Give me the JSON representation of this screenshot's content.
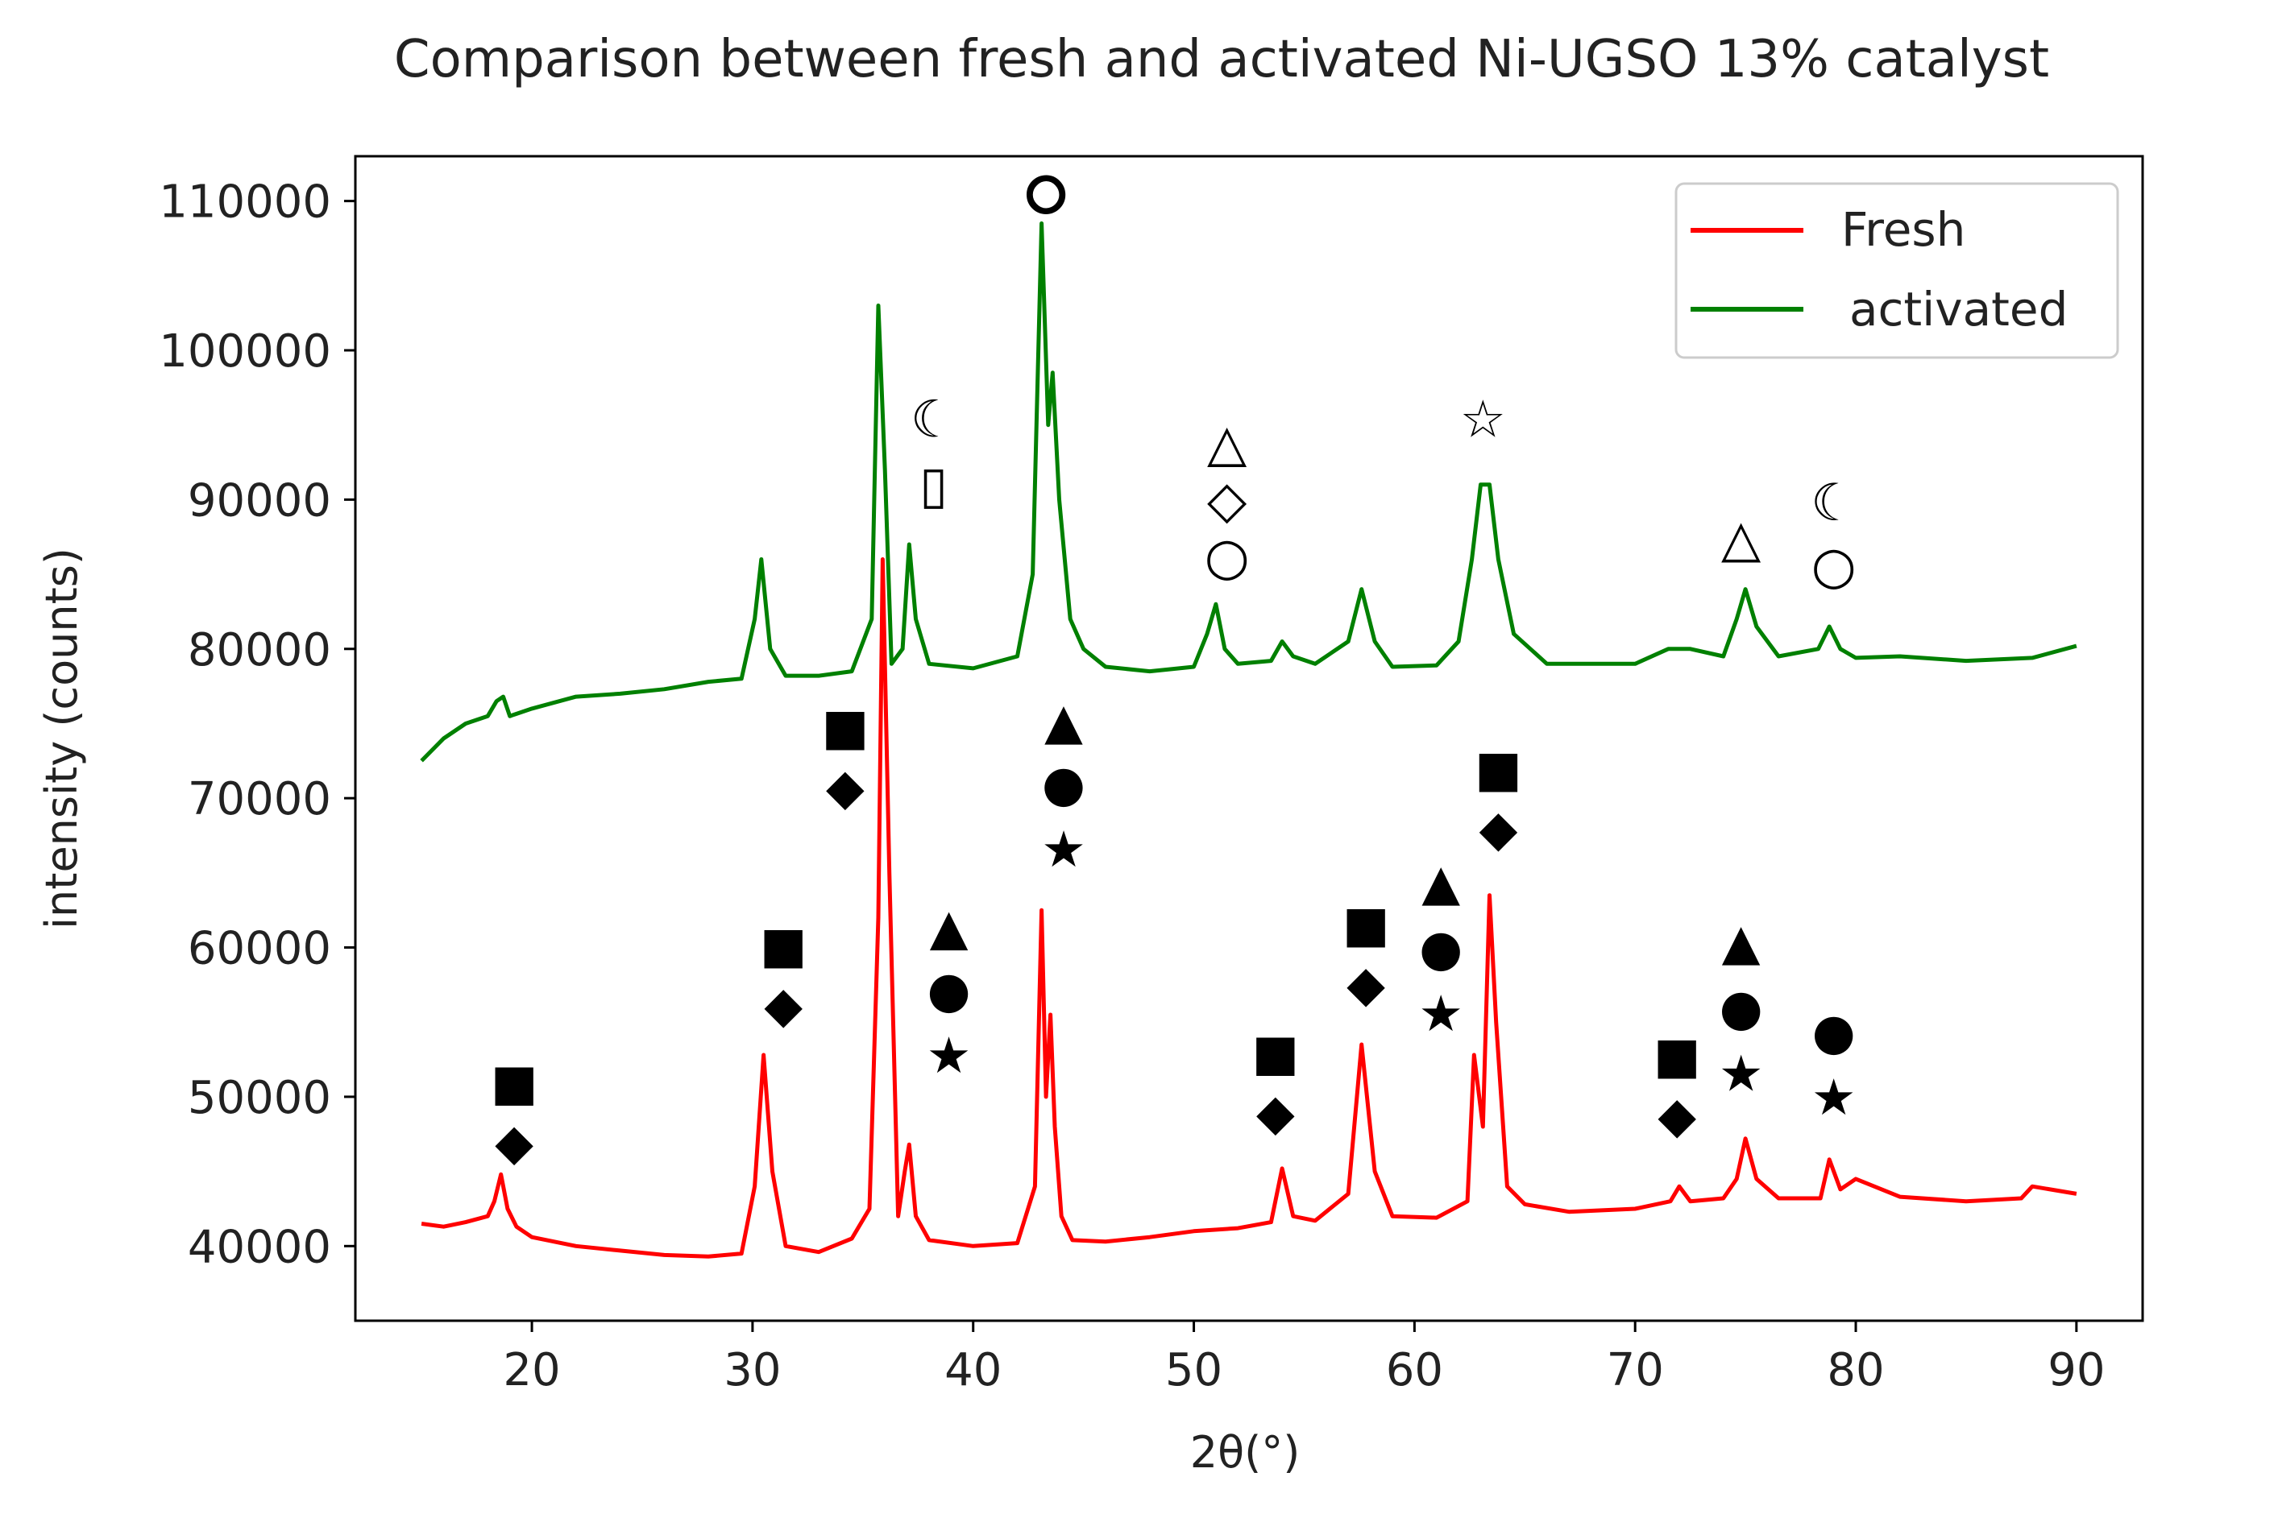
{
  "chart_data": {
    "type": "line",
    "title": "Comparison between fresh and activated Ni-UGSO 13% catalyst",
    "xlabel": "2θ(°)",
    "ylabel": "intensity (counts)",
    "xlim": [
      12,
      93
    ],
    "ylim": [
      35000,
      113000
    ],
    "xticks": [
      20,
      30,
      40,
      50,
      60,
      70,
      80,
      90
    ],
    "xtick_labels": [
      "20",
      "30",
      "40",
      "50",
      "60",
      "70",
      "80",
      "90"
    ],
    "yticks": [
      40000,
      50000,
      60000,
      70000,
      80000,
      90000,
      100000,
      110000
    ],
    "ytick_labels": [
      "40000",
      "50000",
      "60000",
      "70000",
      "80000",
      "90000",
      "100000",
      "110000"
    ],
    "grid": false,
    "legend_position": "top-right",
    "series": [
      {
        "name": "Fresh",
        "color": "#ff0000",
        "x": [
          15,
          16,
          17,
          18,
          18.3,
          18.6,
          18.9,
          19.3,
          20,
          22,
          24,
          26,
          28,
          29.5,
          30.1,
          30.5,
          30.9,
          31.5,
          33,
          34.5,
          35.3,
          35.7,
          35.9,
          36.2,
          36.6,
          36.9,
          37.1,
          37.4,
          38,
          40,
          42,
          42.8,
          43.1,
          43.3,
          43.5,
          43.7,
          44,
          44.5,
          46,
          48,
          50,
          52,
          53.5,
          54,
          54.5,
          55.5,
          57,
          57.6,
          58.2,
          59,
          61,
          62.4,
          62.7,
          63.1,
          63.4,
          63.7,
          64.2,
          65,
          67,
          70,
          71.6,
          72,
          72.5,
          74,
          74.6,
          75,
          75.5,
          76.5,
          78.4,
          78.8,
          79.3,
          80,
          82,
          85,
          87.5,
          88,
          90
        ],
        "y": [
          41500,
          41300,
          41600,
          42000,
          43000,
          44800,
          42500,
          41300,
          40600,
          40000,
          39700,
          39400,
          39300,
          39500,
          44000,
          52800,
          45000,
          40000,
          39600,
          40500,
          42500,
          62000,
          86000,
          65000,
          42000,
          45000,
          46800,
          42000,
          40400,
          40000,
          40200,
          44000,
          62500,
          50000,
          55500,
          48000,
          42000,
          40400,
          40300,
          40600,
          41000,
          41200,
          41600,
          45200,
          42000,
          41700,
          43500,
          53500,
          45000,
          42000,
          41900,
          43000,
          52800,
          48000,
          63500,
          55000,
          44000,
          42800,
          42300,
          42500,
          43000,
          44000,
          43000,
          43200,
          44500,
          47200,
          44500,
          43200,
          43200,
          45800,
          43800,
          44500,
          43300,
          43000,
          43200,
          44000,
          43500
        ]
      },
      {
        "name": "activated",
        "color": "#008000",
        "x": [
          15,
          16,
          17,
          18,
          18.4,
          18.7,
          19,
          20,
          22,
          24,
          26,
          28,
          29.5,
          30.1,
          30.4,
          30.8,
          31.5,
          33,
          34.5,
          35.4,
          35.7,
          36,
          36.3,
          36.8,
          37.1,
          37.4,
          38,
          40,
          42,
          42.7,
          43.1,
          43.4,
          43.6,
          43.9,
          44.4,
          45,
          46,
          48,
          50,
          50.6,
          51,
          51.4,
          52,
          53.5,
          54,
          54.5,
          55.5,
          57,
          57.6,
          58.2,
          59,
          61,
          62,
          62.6,
          63,
          63.4,
          63.8,
          64.5,
          66,
          68,
          70,
          71.5,
          72.5,
          74,
          74.6,
          75,
          75.5,
          76.5,
          78.3,
          78.8,
          79.3,
          80,
          82,
          85,
          88,
          90
        ],
        "y": [
          72500,
          74000,
          75000,
          75500,
          76500,
          76800,
          75500,
          76000,
          76800,
          77000,
          77300,
          77800,
          78000,
          82000,
          86000,
          80000,
          78200,
          78200,
          78500,
          82000,
          103000,
          92000,
          79000,
          80000,
          87000,
          82000,
          79000,
          78700,
          79500,
          85000,
          108500,
          95000,
          98500,
          90000,
          82000,
          80000,
          78800,
          78500,
          78800,
          81000,
          83000,
          80000,
          79000,
          79200,
          80500,
          79500,
          79000,
          80500,
          84000,
          80500,
          78800,
          78900,
          80500,
          86000,
          91000,
          91000,
          86000,
          81000,
          79000,
          79000,
          79000,
          80000,
          80000,
          79500,
          82000,
          84000,
          81500,
          79500,
          80000,
          81500,
          80000,
          79400,
          79500,
          79200,
          79400,
          80200
        ]
      }
    ],
    "annotations": [
      {
        "symbol": "■",
        "x": 19.2,
        "y": 51000
      },
      {
        "symbol": "◆",
        "x": 19.2,
        "y": 47000
      },
      {
        "symbol": "■",
        "x": 31.4,
        "y": 60200
      },
      {
        "symbol": "◆",
        "x": 31.4,
        "y": 56200
      },
      {
        "symbol": "■",
        "x": 34.2,
        "y": 74800
      },
      {
        "symbol": "◆",
        "x": 34.2,
        "y": 70800
      },
      {
        "symbol": "▲",
        "x": 38.9,
        "y": 61400
      },
      {
        "symbol": "●",
        "x": 38.9,
        "y": 57200
      },
      {
        "symbol": "★",
        "x": 38.9,
        "y": 52800
      },
      {
        "symbol": "▲",
        "x": 44.1,
        "y": 75200
      },
      {
        "symbol": "●",
        "x": 44.1,
        "y": 71000
      },
      {
        "symbol": "★",
        "x": 44.1,
        "y": 66600
      },
      {
        "symbol": "■",
        "x": 53.7,
        "y": 53000
      },
      {
        "symbol": "◆",
        "x": 53.7,
        "y": 49000
      },
      {
        "symbol": "■",
        "x": 57.8,
        "y": 61600
      },
      {
        "symbol": "◆",
        "x": 57.8,
        "y": 57600
      },
      {
        "symbol": "▲",
        "x": 61.2,
        "y": 64400
      },
      {
        "symbol": "●",
        "x": 61.2,
        "y": 60000
      },
      {
        "symbol": "★",
        "x": 61.2,
        "y": 55600
      },
      {
        "symbol": "■",
        "x": 63.8,
        "y": 72000
      },
      {
        "symbol": "◆",
        "x": 63.8,
        "y": 68000
      },
      {
        "symbol": "■",
        "x": 71.9,
        "y": 52800
      },
      {
        "symbol": "◆",
        "x": 71.9,
        "y": 48800
      },
      {
        "symbol": "▲",
        "x": 74.8,
        "y": 60400
      },
      {
        "symbol": "●",
        "x": 74.8,
        "y": 56000
      },
      {
        "symbol": "★",
        "x": 74.8,
        "y": 51600
      },
      {
        "symbol": "●",
        "x": 79.0,
        "y": 54400
      },
      {
        "symbol": "★",
        "x": 79.0,
        "y": 50000
      },
      {
        "symbol": "☾",
        "x": 38.2,
        "y": 95400
      },
      {
        "symbol": "▯",
        "x": 38.2,
        "y": 91000
      },
      {
        "symbol": "⭘",
        "x": 43.3,
        "y": 110400
      },
      {
        "symbol": "△",
        "x": 51.5,
        "y": 93800
      },
      {
        "symbol": "◇",
        "x": 51.5,
        "y": 90000
      },
      {
        "symbol": "○",
        "x": 51.5,
        "y": 86200
      },
      {
        "symbol": "☆",
        "x": 63.1,
        "y": 95400
      },
      {
        "symbol": "△",
        "x": 74.8,
        "y": 87400
      },
      {
        "symbol": "☾",
        "x": 79.0,
        "y": 89800
      },
      {
        "symbol": "○",
        "x": 79.0,
        "y": 85600
      }
    ]
  }
}
